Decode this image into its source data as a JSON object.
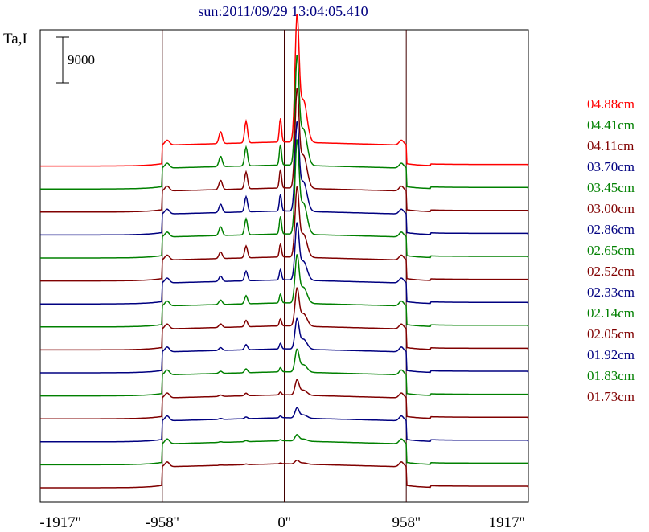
{
  "chart_data": {
    "type": "line",
    "title": "sun:2011/09/29 13:04:05.410",
    "ylabel": "Ta,I",
    "scale_bar_label": "9000",
    "x_ticks": [
      {
        "value": -1917,
        "label": "-1917''"
      },
      {
        "value": -958,
        "label": "-958''"
      },
      {
        "value": 0,
        "label": "0''"
      },
      {
        "value": 958,
        "label": "958''"
      },
      {
        "value": 1917,
        "label": "1917''"
      }
    ],
    "xlim": [
      -1917,
      1917
    ],
    "vertical_lines": [
      -958,
      0,
      958
    ],
    "grid": false,
    "legend_position": "right",
    "series": [
      {
        "name": "04.88cm",
        "color": "#ff0000",
        "peak": 1.0
      },
      {
        "name": "04.41cm",
        "color": "#008000",
        "peak": 0.86
      },
      {
        "name": "04.11cm",
        "color": "#800000",
        "peak": 0.78
      },
      {
        "name": "03.70cm",
        "color": "#000080",
        "peak": 0.7
      },
      {
        "name": "03.45cm",
        "color": "#008000",
        "peak": 0.74
      },
      {
        "name": "03.00cm",
        "color": "#800000",
        "peak": 0.55
      },
      {
        "name": "02.86cm",
        "color": "#000080",
        "peak": 0.45
      },
      {
        "name": "02.65cm",
        "color": "#008000",
        "peak": 0.38
      },
      {
        "name": "02.52cm",
        "color": "#800000",
        "peak": 0.3
      },
      {
        "name": "02.33cm",
        "color": "#000080",
        "peak": 0.24
      },
      {
        "name": "02.14cm",
        "color": "#008000",
        "peak": 0.18
      },
      {
        "name": "02.05cm",
        "color": "#800000",
        "peak": 0.12
      },
      {
        "name": "01.92cm",
        "color": "#000080",
        "peak": 0.08
      },
      {
        "name": "01.83cm",
        "color": "#008000",
        "peak": 0.05
      },
      {
        "name": "01.73cm",
        "color": "#800000",
        "peak": 0.03
      }
    ]
  }
}
